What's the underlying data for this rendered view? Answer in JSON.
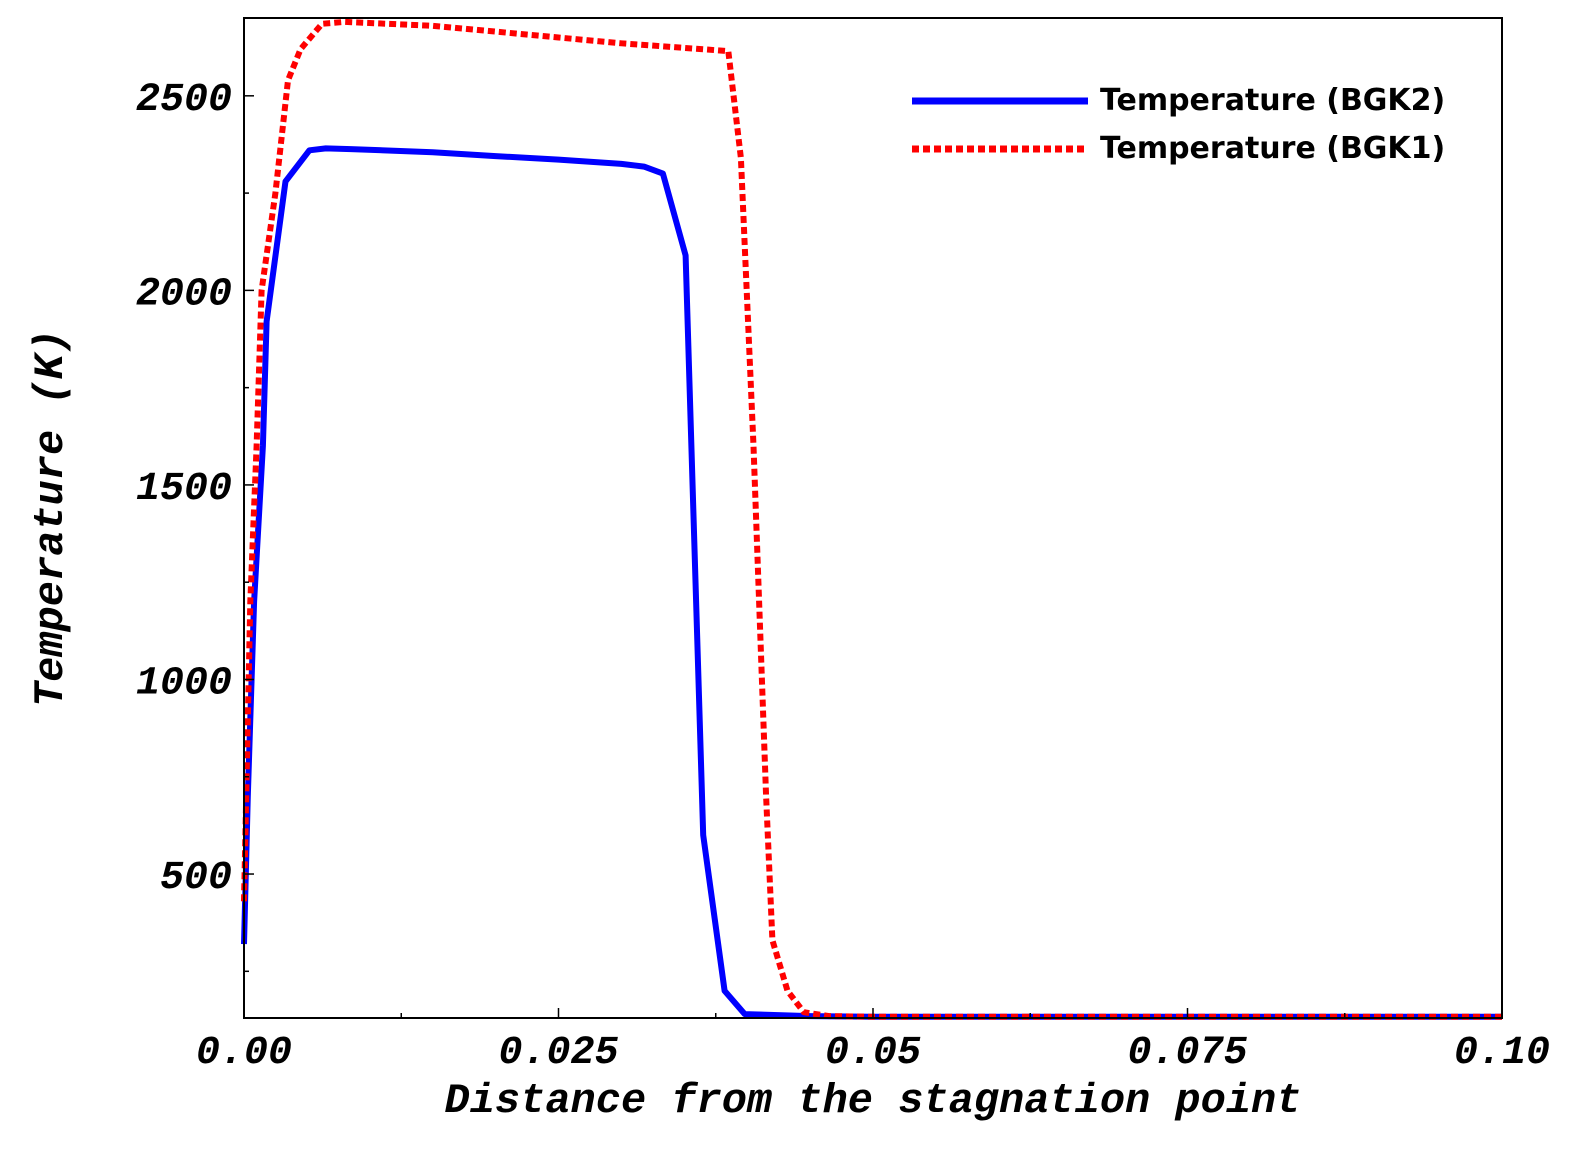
{
  "chart_data": {
    "type": "line",
    "title": "",
    "xlabel": "Distance from the stagnation point",
    "ylabel": "Temperature (K)",
    "xlim": [
      0,
      0.1
    ],
    "ylim": [
      130,
      2700
    ],
    "x_ticks": [
      {
        "value": 0,
        "label": "0.00"
      },
      {
        "value": 0.025,
        "label": "0.025"
      },
      {
        "value": 0.05,
        "label": "0.05"
      },
      {
        "value": 0.075,
        "label": "0.075"
      },
      {
        "value": 0.1,
        "label": "0.10"
      }
    ],
    "y_ticks": [
      {
        "value": 500,
        "label": "500"
      },
      {
        "value": 1000,
        "label": "1000"
      },
      {
        "value": 1500,
        "label": "1500"
      },
      {
        "value": 2000,
        "label": "2000"
      },
      {
        "value": 2500,
        "label": "2500"
      }
    ],
    "legend_position": "top-right",
    "series": [
      {
        "name": "Temperature (BGK2)",
        "color": "#0000ff",
        "style": "solid",
        "points": [
          [
            0.0,
            320
          ],
          [
            0.0003,
            700
          ],
          [
            0.0008,
            1200
          ],
          [
            0.0015,
            1600
          ],
          [
            0.0018,
            1920
          ],
          [
            0.0033,
            2280
          ],
          [
            0.0052,
            2360
          ],
          [
            0.0065,
            2365
          ],
          [
            0.0085,
            2363
          ],
          [
            0.015,
            2355
          ],
          [
            0.02,
            2345
          ],
          [
            0.025,
            2336
          ],
          [
            0.03,
            2325
          ],
          [
            0.0318,
            2318
          ],
          [
            0.0333,
            2300
          ],
          [
            0.0351,
            2090
          ],
          [
            0.0365,
            600
          ],
          [
            0.0382,
            200
          ],
          [
            0.0398,
            140
          ],
          [
            0.045,
            135
          ],
          [
            0.05,
            133
          ],
          [
            0.075,
            133
          ],
          [
            0.1,
            133
          ]
        ]
      },
      {
        "name": "Temperature (BGK1)",
        "color": "#ff0000",
        "style": "dotted",
        "points": [
          [
            0.0,
            430
          ],
          [
            0.0005,
            1200
          ],
          [
            0.001,
            1600
          ],
          [
            0.0014,
            2000
          ],
          [
            0.0025,
            2250
          ],
          [
            0.0035,
            2540
          ],
          [
            0.0045,
            2620
          ],
          [
            0.0062,
            2685
          ],
          [
            0.008,
            2690
          ],
          [
            0.015,
            2680
          ],
          [
            0.02,
            2665
          ],
          [
            0.025,
            2650
          ],
          [
            0.03,
            2635
          ],
          [
            0.0385,
            2615
          ],
          [
            0.0395,
            2340
          ],
          [
            0.0405,
            1600
          ],
          [
            0.0415,
            700
          ],
          [
            0.042,
            330
          ],
          [
            0.0432,
            200
          ],
          [
            0.0445,
            145
          ],
          [
            0.0465,
            135
          ],
          [
            0.05,
            133
          ],
          [
            0.1,
            133
          ]
        ]
      }
    ]
  }
}
